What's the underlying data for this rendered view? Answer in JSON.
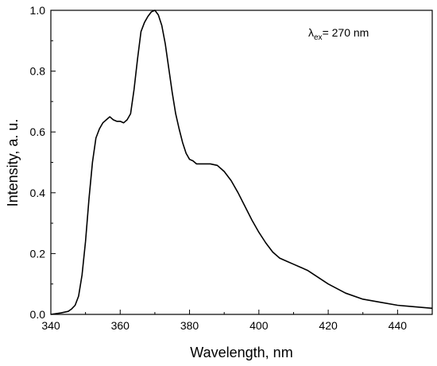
{
  "chart_data": {
    "type": "line",
    "title": "",
    "xlabel": "Wavelength, nm",
    "ylabel": "Intensity, a. u.",
    "xlim": [
      340,
      450
    ],
    "ylim": [
      0.0,
      1.0
    ],
    "xticks": [
      "340",
      "360",
      "380",
      "400",
      "420",
      "440"
    ],
    "yticks": [
      "0.0",
      "0.2",
      "0.4",
      "0.6",
      "0.8",
      "1.0"
    ],
    "grid": false,
    "line_color": "#000000",
    "annotation": {
      "symbol": "λ",
      "subscript": "ex",
      "text": "= 270 nm"
    },
    "series": [
      {
        "x": [
          340,
          343,
          345,
          346,
          347,
          348,
          349,
          350,
          351,
          352,
          353,
          354,
          355,
          356,
          357,
          358,
          359,
          360,
          361,
          362,
          363,
          364,
          365,
          366,
          367,
          368,
          369,
          370,
          371,
          372,
          373,
          374,
          375,
          376,
          377,
          378,
          379,
          380,
          381,
          382,
          384,
          386,
          388,
          389,
          390,
          392,
          394,
          396,
          398,
          400,
          402,
          404,
          406,
          408,
          410,
          412,
          414,
          416,
          418,
          420,
          425,
          430,
          435,
          440,
          445,
          450
        ],
        "y": [
          0.0,
          0.005,
          0.01,
          0.018,
          0.03,
          0.06,
          0.13,
          0.24,
          0.38,
          0.5,
          0.58,
          0.61,
          0.63,
          0.64,
          0.65,
          0.64,
          0.635,
          0.635,
          0.63,
          0.64,
          0.66,
          0.74,
          0.84,
          0.93,
          0.96,
          0.98,
          0.995,
          1.0,
          0.985,
          0.95,
          0.89,
          0.81,
          0.73,
          0.66,
          0.61,
          0.565,
          0.53,
          0.51,
          0.505,
          0.495,
          0.495,
          0.495,
          0.49,
          0.48,
          0.47,
          0.44,
          0.4,
          0.355,
          0.31,
          0.27,
          0.235,
          0.205,
          0.185,
          0.175,
          0.165,
          0.155,
          0.145,
          0.13,
          0.115,
          0.1,
          0.07,
          0.05,
          0.04,
          0.03,
          0.025,
          0.02
        ]
      }
    ]
  }
}
